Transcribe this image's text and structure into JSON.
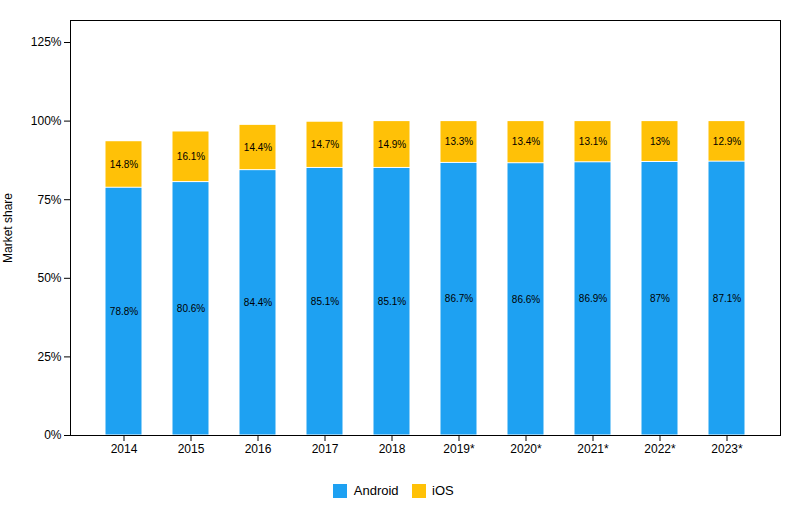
{
  "chart_data": {
    "type": "bar",
    "stacked": true,
    "categories": [
      "2014",
      "2015",
      "2016",
      "2017",
      "2018",
      "2019*",
      "2020*",
      "2021*",
      "2022*",
      "2023*"
    ],
    "series": [
      {
        "name": "Android",
        "color": "#1EA1F2",
        "values": [
          78.8,
          80.6,
          84.4,
          85.1,
          85.1,
          86.7,
          86.6,
          86.9,
          87.0,
          87.1
        ],
        "value_labels": [
          "78.8%",
          "80.6%",
          "84.4%",
          "85.1%",
          "85.1%",
          "86.7%",
          "86.6%",
          "86.9%",
          "87%",
          "87.1%"
        ]
      },
      {
        "name": "iOS",
        "color": "#FFC107",
        "values": [
          14.8,
          16.1,
          14.4,
          14.7,
          14.9,
          13.3,
          13.4,
          13.1,
          13.0,
          12.9
        ],
        "value_labels": [
          "14.8%",
          "16.1%",
          "14.4%",
          "14.7%",
          "14.9%",
          "13.3%",
          "13.4%",
          "13.1%",
          "13%",
          "12.9%"
        ]
      }
    ],
    "ylabel": "Market share",
    "ylim": [
      0,
      132
    ],
    "yticks": [
      {
        "value": 0,
        "label": "0%"
      },
      {
        "value": 25,
        "label": "25%"
      },
      {
        "value": 50,
        "label": "50%"
      },
      {
        "value": 75,
        "label": "75%"
      },
      {
        "value": 100,
        "label": "100%"
      },
      {
        "value": 125,
        "label": "125%"
      }
    ],
    "grid": false,
    "legend": "bottom",
    "data_labels": true
  }
}
